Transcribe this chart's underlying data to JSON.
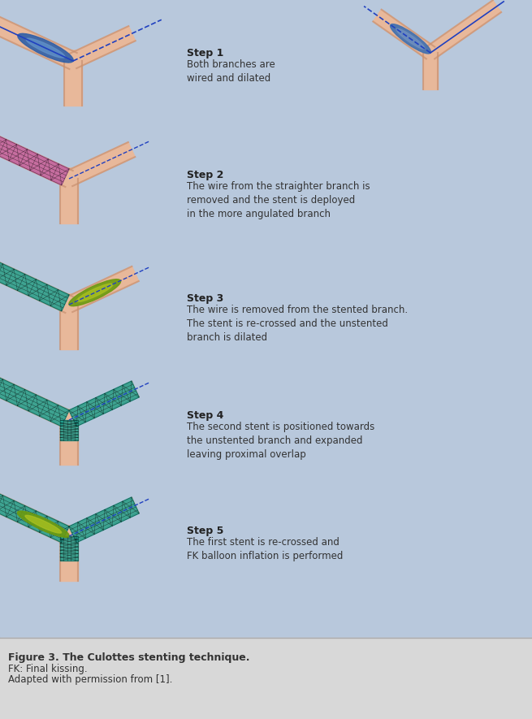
{
  "title": "Figure 3. The Culottes stenting technique.",
  "caption_line1": "FK: Final kissing.",
  "caption_line2": "Adapted with permission from [1].",
  "bg_color": "#b8c8dc",
  "caption_bg": "#d8d8d8",
  "vessel_color": "#e8b89a",
  "vessel_dark": "#c89070",
  "stent1_color": "#c060a0",
  "stent2_color": "#20a090",
  "balloon_blue": "#4080c0",
  "balloon_light": "#80b0e0",
  "wire_color": "#2060a0",
  "green_yellow": "#a0b820",
  "steps": [
    {
      "number": "Step 1",
      "text": "Both branches are\nwired and dilated"
    },
    {
      "number": "Step 2",
      "text": "The wire from the straighter branch is\nremoved and the stent is deployed\nin the more angulated branch"
    },
    {
      "number": "Step 3",
      "text": "The wire is removed from the stented branch.\nThe stent is re-crossed and the unstented\nbranch is dilated"
    },
    {
      "number": "Step 4",
      "text": "The second stent is positioned towards\nthe unstented branch and expanded\nleaving proximal overlap"
    },
    {
      "number": "Step 5",
      "text": "The first stent is re-crossed and\nFK balloon inflation is performed"
    }
  ]
}
